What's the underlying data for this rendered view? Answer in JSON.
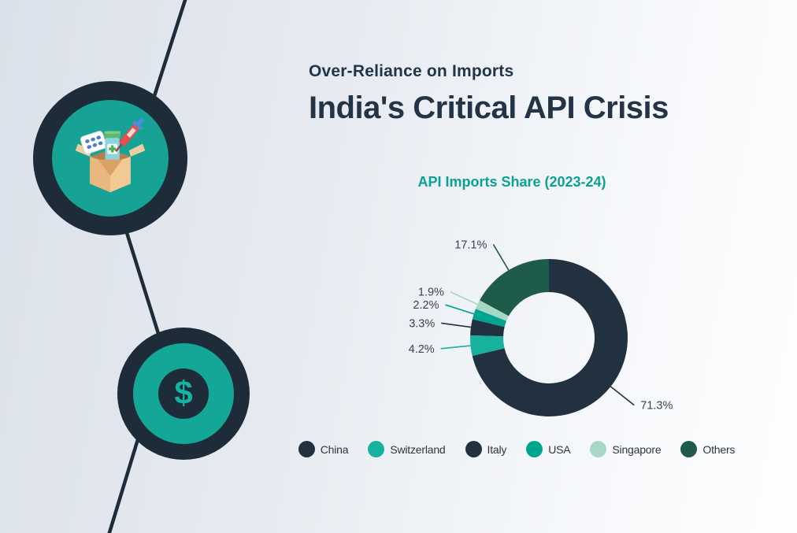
{
  "header": {
    "subtitle": "Over-Reliance on Imports",
    "title": "India's Critical API Crisis"
  },
  "chart_data": {
    "type": "pie",
    "donut": true,
    "title": "API Imports Share (2023-24)",
    "start_angle_deg": 0,
    "direction": "clockwise",
    "value_suffix": "%",
    "legend_position": "bottom",
    "series": [
      {
        "label": "China",
        "value": 71.3,
        "color": "#22313f"
      },
      {
        "label": "Switzerland",
        "value": 4.2,
        "color": "#17b29e"
      },
      {
        "label": "Italy",
        "value": 3.3,
        "color": "#22313f"
      },
      {
        "label": "USA",
        "value": 2.2,
        "color": "#00a58f"
      },
      {
        "label": "Singapore",
        "value": 1.9,
        "color": "#a7d8c5"
      },
      {
        "label": "Others",
        "value": 17.1,
        "color": "#1f5b4b"
      }
    ]
  },
  "decorations": {
    "dollar_symbol": "$",
    "icons": [
      "medicine-box-icon",
      "dollar-icon"
    ],
    "accent_teal": "#16a294",
    "accent_navy": "#1e2c39"
  }
}
